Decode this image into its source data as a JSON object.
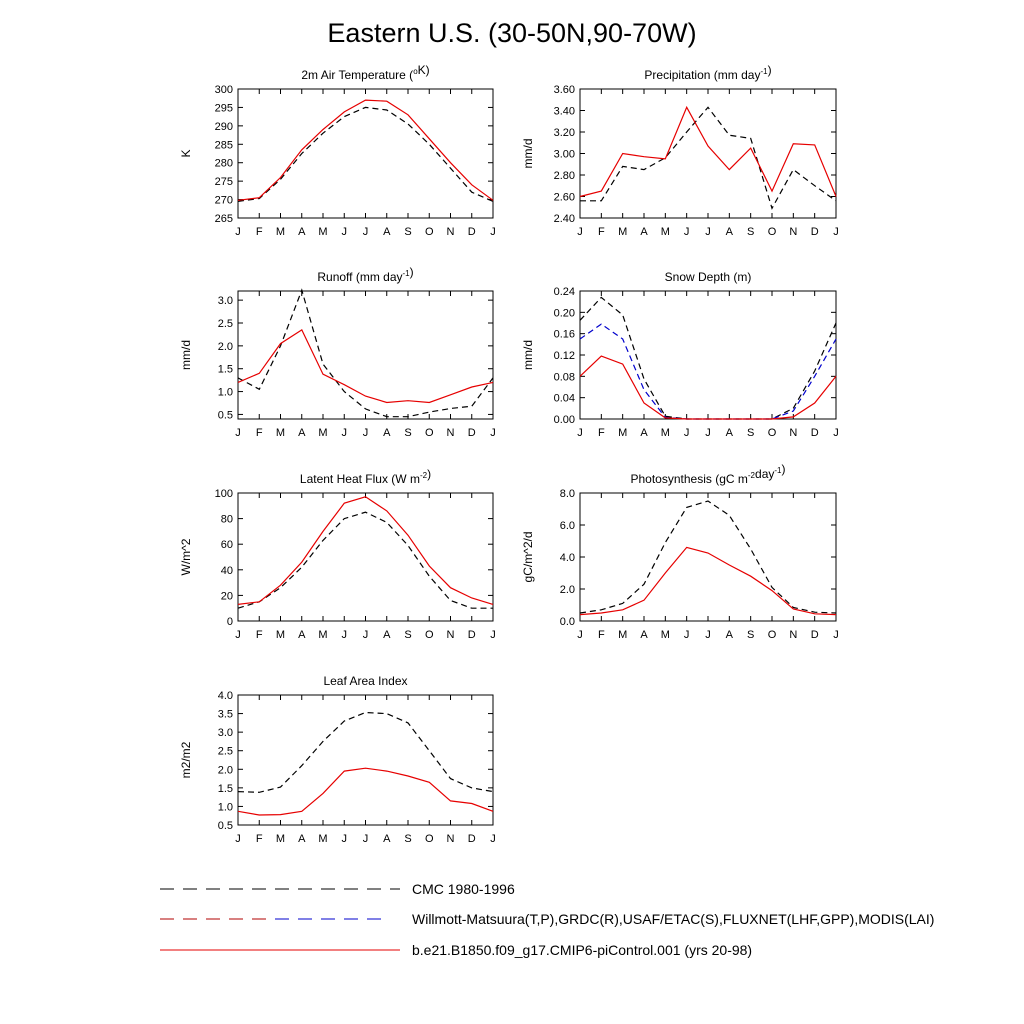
{
  "title": "Eastern U.S. (30-50N,90-70W)",
  "colors": {
    "cmc": "#000000",
    "obs": "#0000cc",
    "model": "#e60000"
  },
  "legend": [
    {
      "label": "CMC 1980-1996",
      "style": "cmc"
    },
    {
      "label": "Willmott-Matsuura(T,P),GRDC(R),USAF/ETAC(S),FLUXNET(LHF,GPP),MODIS(LAI)",
      "style": "obs"
    },
    {
      "label": "b.e21.B1850.f09_g17.CMIP6-piControl.001 (yrs 20-98)",
      "style": "model"
    }
  ],
  "chart_data": [
    {
      "type": "line",
      "title": "2m Air Temperature (",
      "title_super": "o",
      "title_after": "K)",
      "ylabel": "K",
      "categories": [
        "J",
        "F",
        "M",
        "A",
        "M",
        "J",
        "J",
        "A",
        "S",
        "O",
        "N",
        "D",
        "J"
      ],
      "ylim": [
        265,
        300
      ],
      "yticks": [
        265,
        270,
        275,
        280,
        285,
        290,
        295,
        300
      ],
      "ytick_labels": [
        "265",
        "270",
        "275",
        "280",
        "285",
        "290",
        "295",
        "300"
      ],
      "series": [
        {
          "name": "observations",
          "style": "cmc",
          "values": [
            269.5,
            270.3,
            275.5,
            282.5,
            288.0,
            292.5,
            295.0,
            294.3,
            290.5,
            285.0,
            278.5,
            272.0,
            269.5
          ]
        },
        {
          "name": "model",
          "style": "model",
          "values": [
            269.8,
            270.5,
            276.0,
            283.5,
            289.0,
            293.8,
            297.0,
            296.7,
            293.0,
            286.5,
            280.0,
            274.0,
            269.8
          ]
        }
      ]
    },
    {
      "type": "line",
      "title": "Precipitation (mm day",
      "title_super": "-1",
      "title_after": ")",
      "ylabel": "mm/d",
      "categories": [
        "J",
        "F",
        "M",
        "A",
        "M",
        "J",
        "J",
        "A",
        "S",
        "O",
        "N",
        "D",
        "J"
      ],
      "ylim": [
        2.4,
        3.6
      ],
      "yticks": [
        2.4,
        2.6,
        2.8,
        3.0,
        3.2,
        3.4,
        3.6
      ],
      "ytick_labels": [
        "2.40",
        "2.60",
        "2.80",
        "3.00",
        "3.20",
        "3.40",
        "3.60"
      ],
      "series": [
        {
          "name": "observations",
          "style": "cmc",
          "values": [
            2.56,
            2.56,
            2.88,
            2.85,
            2.96,
            3.2,
            3.43,
            3.17,
            3.14,
            2.49,
            2.85,
            2.7,
            2.56
          ]
        },
        {
          "name": "model",
          "style": "model",
          "values": [
            2.6,
            2.65,
            3.0,
            2.97,
            2.95,
            3.43,
            3.07,
            2.85,
            3.05,
            2.65,
            3.09,
            3.08,
            2.6
          ]
        }
      ]
    },
    {
      "type": "line",
      "title": "Runoff (mm day",
      "title_super": "-1",
      "title_after": ")",
      "ylabel": "mm/d",
      "categories": [
        "J",
        "F",
        "M",
        "A",
        "M",
        "J",
        "J",
        "A",
        "S",
        "O",
        "N",
        "D",
        "J"
      ],
      "ylim": [
        0.4,
        3.2
      ],
      "yticks": [
        0.5,
        1.0,
        1.5,
        2.0,
        2.5,
        3.0
      ],
      "ytick_labels": [
        "0.5",
        "1.0",
        "1.5",
        "2.0",
        "2.5",
        "3.0"
      ],
      "series": [
        {
          "name": "observations",
          "style": "cmc",
          "values": [
            1.3,
            1.05,
            2.0,
            3.22,
            1.6,
            1.0,
            0.62,
            0.45,
            0.45,
            0.55,
            0.63,
            0.68,
            1.3
          ]
        },
        {
          "name": "model",
          "style": "model",
          "values": [
            1.2,
            1.4,
            2.05,
            2.35,
            1.38,
            1.15,
            0.9,
            0.76,
            0.8,
            0.76,
            0.93,
            1.1,
            1.2
          ]
        }
      ]
    },
    {
      "type": "line",
      "title": "Snow Depth (m)",
      "title_super": "",
      "title_after": "",
      "ylabel": "mm/d",
      "categories": [
        "J",
        "F",
        "M",
        "A",
        "M",
        "J",
        "J",
        "A",
        "S",
        "O",
        "N",
        "D",
        "J"
      ],
      "ylim": [
        0,
        0.24
      ],
      "yticks": [
        0,
        0.04,
        0.08,
        0.12,
        0.16,
        0.2,
        0.24
      ],
      "ytick_labels": [
        "0.00",
        "0.04",
        "0.08",
        "0.12",
        "0.16",
        "0.20",
        "0.24"
      ],
      "series": [
        {
          "name": "CMC",
          "style": "cmc",
          "values": [
            0.185,
            0.228,
            0.195,
            0.075,
            0.005,
            0,
            0,
            0,
            0,
            0,
            0.02,
            0.09,
            0.18
          ]
        },
        {
          "name": "observations",
          "style": "obs",
          "values": [
            0.15,
            0.178,
            0.15,
            0.055,
            0.003,
            0,
            0,
            0,
            0,
            0,
            0.015,
            0.08,
            0.15
          ]
        },
        {
          "name": "model",
          "style": "model",
          "values": [
            0.08,
            0.118,
            0.103,
            0.03,
            0.002,
            0,
            0,
            0,
            0,
            0,
            0.004,
            0.03,
            0.08
          ]
        }
      ]
    },
    {
      "type": "line",
      "title": "Latent Heat Flux (W m",
      "title_super": "-2",
      "title_after": ")",
      "ylabel": "W/m^2",
      "categories": [
        "J",
        "F",
        "M",
        "A",
        "M",
        "J",
        "J",
        "A",
        "S",
        "O",
        "N",
        "D",
        "J"
      ],
      "ylim": [
        0,
        100
      ],
      "yticks": [
        0,
        20,
        40,
        60,
        80,
        100
      ],
      "ytick_labels": [
        "0",
        "20",
        "40",
        "60",
        "80",
        "100"
      ],
      "series": [
        {
          "name": "observations",
          "style": "cmc",
          "values": [
            10,
            15,
            26,
            42,
            63,
            80,
            85,
            77,
            59,
            35,
            16,
            10,
            10
          ]
        },
        {
          "name": "model",
          "style": "model",
          "values": [
            13,
            15,
            28,
            46,
            70,
            92,
            97,
            86,
            67,
            43,
            26,
            18,
            13
          ]
        }
      ]
    },
    {
      "type": "line",
      "title": "Photosynthesis (gC m",
      "title_super": "-2",
      "title_after": "day",
      "title_super2": "-1",
      "title_after2": ")",
      "ylabel": "gC/m^2/d",
      "categories": [
        "J",
        "F",
        "M",
        "A",
        "M",
        "J",
        "J",
        "A",
        "S",
        "O",
        "N",
        "D",
        "J"
      ],
      "ylim": [
        0,
        8
      ],
      "yticks": [
        0,
        2,
        4,
        6,
        8
      ],
      "ytick_labels": [
        "0.0",
        "2.0",
        "4.0",
        "6.0",
        "8.0"
      ],
      "series": [
        {
          "name": "observations",
          "style": "cmc",
          "values": [
            0.5,
            0.7,
            1.1,
            2.3,
            4.9,
            7.1,
            7.5,
            6.6,
            4.5,
            2.1,
            0.85,
            0.55,
            0.5
          ]
        },
        {
          "name": "model",
          "style": "model",
          "values": [
            0.4,
            0.5,
            0.7,
            1.3,
            3.0,
            4.6,
            4.25,
            3.5,
            2.8,
            1.9,
            0.75,
            0.45,
            0.4
          ]
        }
      ]
    },
    {
      "type": "line",
      "title": "Leaf Area Index",
      "title_super": "",
      "title_after": "",
      "ylabel": "m2/m2",
      "categories": [
        "J",
        "F",
        "M",
        "A",
        "M",
        "J",
        "J",
        "A",
        "S",
        "O",
        "N",
        "D",
        "J"
      ],
      "ylim": [
        0.5,
        4.0
      ],
      "yticks": [
        0.5,
        1.0,
        1.5,
        2.0,
        2.5,
        3.0,
        3.5,
        4.0
      ],
      "ytick_labels": [
        "0.5",
        "1.0",
        "1.5",
        "2.0",
        "2.5",
        "3.0",
        "3.5",
        "4.0"
      ],
      "series": [
        {
          "name": "observations",
          "style": "cmc",
          "values": [
            1.4,
            1.38,
            1.52,
            2.1,
            2.75,
            3.3,
            3.53,
            3.5,
            3.25,
            2.5,
            1.75,
            1.5,
            1.4
          ]
        },
        {
          "name": "model",
          "style": "model",
          "values": [
            0.87,
            0.77,
            0.78,
            0.87,
            1.35,
            1.95,
            2.03,
            1.95,
            1.82,
            1.65,
            1.15,
            1.08,
            0.87
          ]
        }
      ]
    }
  ]
}
